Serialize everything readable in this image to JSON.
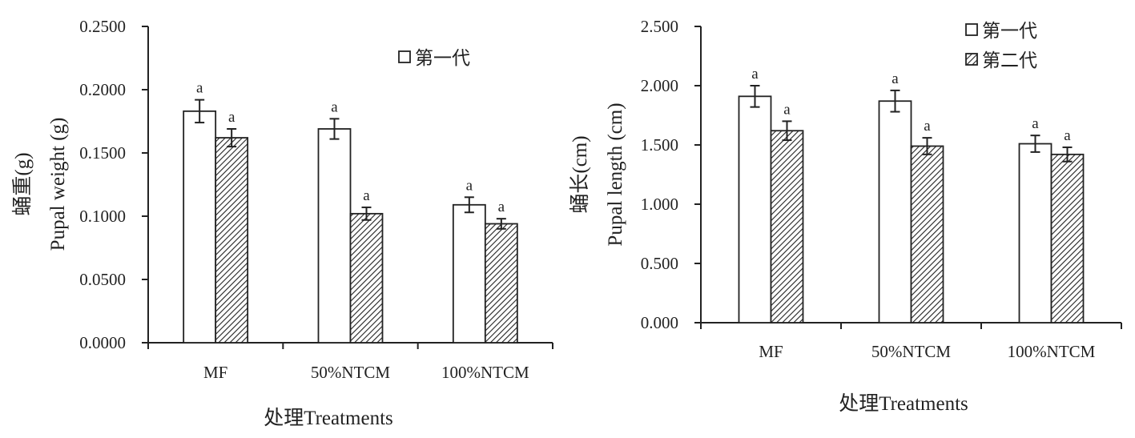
{
  "chart_data": [
    {
      "type": "bar",
      "title": "",
      "xlabel": "处理Treatments",
      "ylabel_cn": "蛹重(g)",
      "ylabel_en": "Pupal weight (g)",
      "ylim": [
        0,
        0.25
      ],
      "yticks": [
        "0.0000",
        "0.0500",
        "0.1000",
        "0.1500",
        "0.2000",
        "0.2500"
      ],
      "categories": [
        "MF",
        "50%NTCM",
        "100%NTCM"
      ],
      "legend_position": "top-right",
      "legend": [
        "第一代"
      ],
      "series": [
        {
          "name": "第一代",
          "pattern": "open",
          "values": [
            0.183,
            0.169,
            0.109
          ],
          "errors": [
            0.009,
            0.008,
            0.006
          ],
          "letters": [
            "a",
            "a",
            "a"
          ]
        },
        {
          "pattern": "hatched",
          "values": [
            0.162,
            0.102,
            0.094
          ],
          "errors": [
            0.007,
            0.005,
            0.004
          ],
          "letters": [
            "a",
            "a",
            "a"
          ]
        }
      ]
    },
    {
      "type": "bar",
      "title": "",
      "xlabel": "处理Treatments",
      "ylabel_cn": "蛹长(cm)",
      "ylabel_en": "Pupal length (cm)",
      "ylim": [
        0,
        2.5
      ],
      "yticks": [
        "0.000",
        "0.500",
        "1.000",
        "1.500",
        "2.000",
        "2.500"
      ],
      "categories": [
        "MF",
        "50%NTCM",
        "100%NTCM"
      ],
      "legend_position": "top-right",
      "legend": [
        "第一代",
        "第二代"
      ],
      "series": [
        {
          "name": "第一代",
          "pattern": "open",
          "values": [
            1.91,
            1.87,
            1.51
          ],
          "errors": [
            0.09,
            0.09,
            0.07
          ],
          "letters": [
            "a",
            "a",
            "a"
          ]
        },
        {
          "name": "第二代",
          "pattern": "hatched",
          "values": [
            1.62,
            1.49,
            1.42
          ],
          "errors": [
            0.08,
            0.07,
            0.06
          ],
          "letters": [
            "a",
            "a",
            "a"
          ]
        }
      ]
    }
  ],
  "colors": {
    "axis": "#222222",
    "bar_fill": "#ffffff",
    "hatch": "#222222",
    "text": "#222222"
  }
}
